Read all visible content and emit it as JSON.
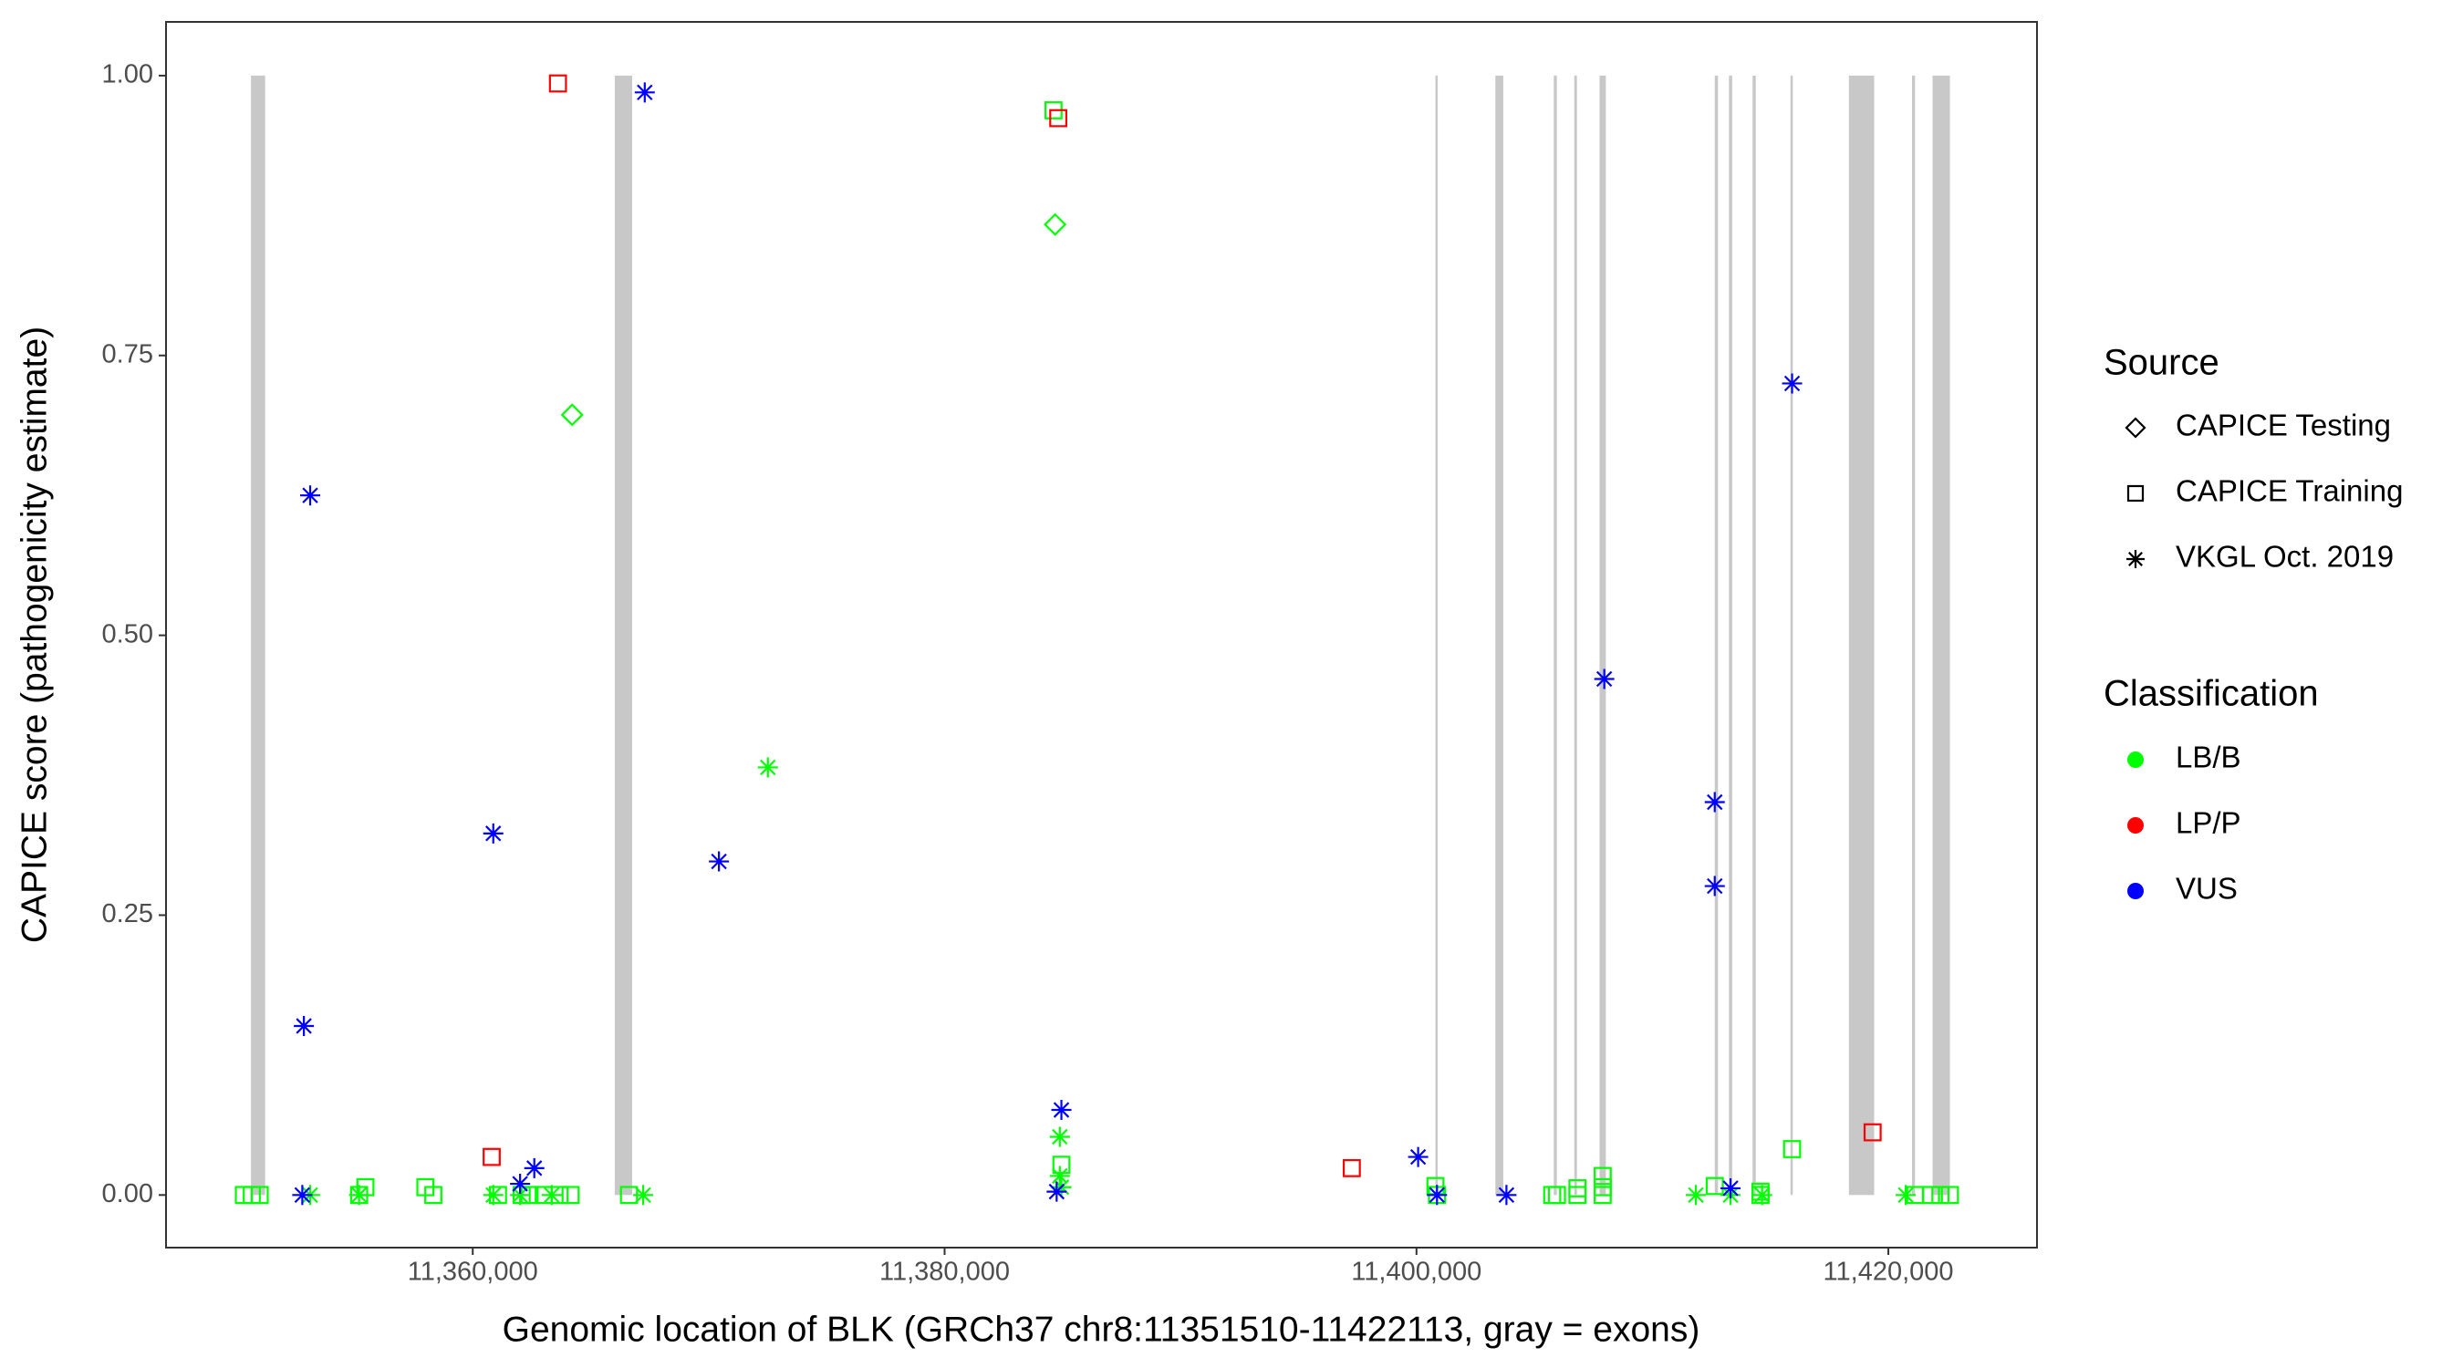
{
  "chart_data": {
    "type": "scatter",
    "x_label": "Genomic location of BLK (GRCh37 chr8:11351510-11422113, gray = exons)",
    "y_label": "CAPICE score (pathogenicity estimate)",
    "xlim": [
      11347000,
      11426300
    ],
    "ylim": [
      -0.047,
      1.048
    ],
    "xticks": [
      {
        "value": 11360000,
        "label": "11,360,000"
      },
      {
        "value": 11380000,
        "label": "11,380,000"
      },
      {
        "value": 11400000,
        "label": "11,400,000"
      },
      {
        "value": 11420000,
        "label": "11,420,000"
      }
    ],
    "yticks": [
      {
        "value": 0,
        "label": "0.00"
      },
      {
        "value": 0.25,
        "label": "0.25"
      },
      {
        "value": 0.5,
        "label": "0.50"
      },
      {
        "value": 0.75,
        "label": "0.75"
      },
      {
        "value": 1,
        "label": "1.00"
      }
    ],
    "grid": false,
    "exon_color": "#c8c8c8",
    "exons": [
      [
        11350600,
        11351200
      ],
      [
        11366020,
        11366756
      ],
      [
        11400803,
        11400900
      ],
      [
        11403344,
        11403679
      ],
      [
        11405819,
        11405950
      ],
      [
        11406689,
        11406800
      ],
      [
        11407759,
        11408027
      ],
      [
        11412642,
        11412780
      ],
      [
        11413244,
        11413380
      ],
      [
        11414247,
        11414380
      ],
      [
        11415853,
        11415950
      ],
      [
        11418328,
        11419398
      ],
      [
        11421003,
        11421130
      ],
      [
        11421873,
        11422609
      ]
    ],
    "source_title": "Source",
    "classification_title": "Classification",
    "sources": [
      {
        "name": "CAPICE Testing",
        "shape": "diamond"
      },
      {
        "name": "CAPICE Training",
        "shape": "square"
      },
      {
        "name": "VKGL Oct. 2019",
        "shape": "asterisk"
      }
    ],
    "classifications": [
      {
        "name": "LB/B",
        "color": "#00ff00"
      },
      {
        "name": "LP/P",
        "color": "#ff0000"
      },
      {
        "name": "VUS",
        "color": "#0000ff"
      }
    ],
    "series": [
      {
        "source": 0,
        "classification": 0,
        "x": [
          11364214,
          11384683
        ],
        "values": [
          0.697,
          0.867
        ]
      },
      {
        "source": 1,
        "classification": 0,
        "x": [
          11350300,
          11350635,
          11350970,
          11355184,
          11355451,
          11357993,
          11358328,
          11361070,
          11362074,
          11362408,
          11363010,
          11363679,
          11364147,
          11366622,
          11384616,
          11384950,
          11400803,
          11400870,
          11405752,
          11405953,
          11406823,
          11406823,
          11407893,
          11407893,
          11407893,
          11412642,
          11414582,
          11414582,
          11415920,
          11421137,
          11421806,
          11422207,
          11422609
        ],
        "values": [
          0,
          0,
          0,
          0,
          0.007,
          0.007,
          0,
          0,
          0,
          0,
          0,
          0,
          0,
          0,
          0.969,
          0.027,
          0.008,
          0,
          0,
          0,
          0.006,
          0,
          0.017,
          0.007,
          0,
          0.008,
          0.003,
          0,
          0.041,
          0,
          0,
          0,
          0
        ]
      },
      {
        "source": 1,
        "classification": 1,
        "x": [
          11363612,
          11360803,
          11384817,
          11397258,
          11419333
        ],
        "values": [
          0.993,
          0.034,
          0.962,
          0.024,
          0.056
        ]
      },
      {
        "source": 2,
        "classification": 0,
        "x": [
          11353110,
          11355184,
          11360870,
          11362007,
          11363345,
          11367224,
          11372509,
          11384883,
          11384883,
          11384950,
          11411841,
          11413311,
          11414649,
          11420736
        ],
        "values": [
          0,
          0,
          0,
          0,
          0,
          0,
          0.382,
          0.052,
          0.017,
          0.007,
          0,
          0,
          0,
          0
        ]
      },
      {
        "source": 2,
        "classification": 2,
        "x": [
          11353110,
          11352843,
          11352776,
          11360870,
          11362007,
          11362609,
          11367291,
          11370435,
          11384950,
          11384749,
          11400070,
          11400870,
          11403813,
          11407960,
          11412642,
          11412642,
          11413311,
          11415920
        ],
        "values": [
          0.625,
          0.151,
          0,
          0.323,
          0.01,
          0.024,
          0.985,
          0.298,
          0.076,
          0.003,
          0.034,
          0,
          0,
          0.461,
          0.351,
          0.276,
          0.006,
          0.725
        ]
      }
    ]
  }
}
